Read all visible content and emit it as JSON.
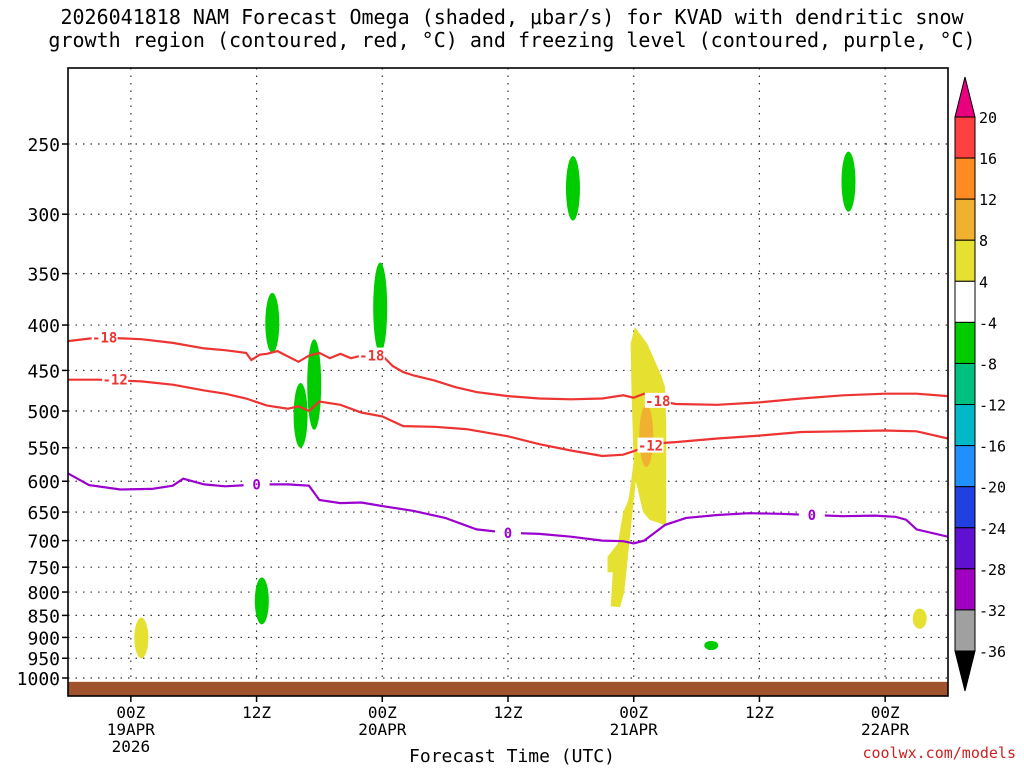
{
  "title_line1": "2026041818 NAM Forecast Omega (shaded, μbar/s) for KVAD with dendritic snow",
  "title_line2": "growth region (contoured, red, °C) and freezing level (contoured, purple, °C)",
  "credit": "coolwx.com/models",
  "chart_data": {
    "type": "contour",
    "title": "2026041818 NAM Forecast Omega (shaded, μbar/s) for KVAD with dendritic snow growth region (contoured, red, °C) and freezing level (contoured, purple, °C)",
    "xlabel": "Forecast Time (UTC)",
    "ylabel": "",
    "x_axis": {
      "unit": "hours from 2026-04-18 18Z",
      "range": [
        0,
        84
      ],
      "ticks": [
        {
          "hour": 6,
          "line1": "00Z",
          "line2": "19APR",
          "line3": "2026"
        },
        {
          "hour": 18,
          "line1": "12Z",
          "line2": "",
          "line3": ""
        },
        {
          "hour": 30,
          "line1": "00Z",
          "line2": "20APR",
          "line3": ""
        },
        {
          "hour": 42,
          "line1": "12Z",
          "line2": "",
          "line3": ""
        },
        {
          "hour": 54,
          "line1": "00Z",
          "line2": "21APR",
          "line3": ""
        },
        {
          "hour": 66,
          "line1": "12Z",
          "line2": "",
          "line3": ""
        },
        {
          "hour": 78,
          "line1": "00Z",
          "line2": "22APR",
          "line3": ""
        }
      ]
    },
    "y_axis": {
      "scale": "log-pressure (hPa), inverted",
      "range": [
        1025,
        200
      ],
      "ticks": [
        250,
        300,
        350,
        400,
        450,
        500,
        550,
        600,
        650,
        700,
        750,
        800,
        850,
        900,
        950,
        1000
      ],
      "grid": "dotted"
    },
    "colorbar": {
      "labels": [
        "20",
        "16",
        "12",
        "8",
        "4",
        "-4",
        "-8",
        "-12",
        "-16",
        "-20",
        "-24",
        "-28",
        "-32",
        "-36"
      ],
      "colors": [
        "#e8007f",
        "#ff4040",
        "#ff8c22",
        "#f0b030",
        "#e6e030",
        "#ffffff",
        "#00cc00",
        "#00c080",
        "#00b8c8",
        "#2090ff",
        "#2040e0",
        "#6010d0",
        "#a000c0",
        "#a0a0a0",
        "#000000"
      ]
    },
    "surface": {
      "color": "#a0522d",
      "pressure_top": 1010
    },
    "contours": [
      {
        "label": "-18",
        "color": "#ee3333",
        "points": [
          [
            0,
            417
          ],
          [
            3,
            413
          ],
          [
            7,
            415
          ],
          [
            10,
            419
          ],
          [
            13,
            425
          ],
          [
            15,
            427
          ],
          [
            17,
            430
          ],
          [
            17.5,
            438
          ],
          [
            18.3,
            432
          ],
          [
            19,
            431
          ],
          [
            20,
            428
          ],
          [
            21,
            434
          ],
          [
            22,
            440
          ],
          [
            23,
            433
          ],
          [
            24,
            430
          ],
          [
            25,
            436
          ],
          [
            26,
            431
          ],
          [
            27,
            436
          ],
          [
            28,
            433
          ],
          [
            29,
            437
          ],
          [
            30,
            433
          ],
          [
            31,
            445
          ],
          [
            32,
            452
          ],
          [
            33,
            456
          ],
          [
            35,
            462
          ],
          [
            37,
            470
          ],
          [
            39,
            476
          ],
          [
            42,
            481
          ],
          [
            45,
            484
          ],
          [
            48,
            485
          ],
          [
            51,
            484
          ],
          [
            53,
            480
          ],
          [
            54,
            483
          ],
          [
            55,
            478
          ],
          [
            56,
            486
          ],
          [
            58,
            491
          ],
          [
            62,
            492
          ],
          [
            66,
            489
          ],
          [
            70,
            484
          ],
          [
            74,
            480
          ],
          [
            78,
            478
          ],
          [
            81,
            478
          ],
          [
            84,
            481
          ]
        ],
        "label_points": [
          [
            3.5,
            413
          ],
          [
            29,
            433
          ],
          [
            56.3,
            487
          ]
        ]
      },
      {
        "label": "-12",
        "color": "#ee3333",
        "points": [
          [
            0,
            461
          ],
          [
            3,
            461
          ],
          [
            7,
            463
          ],
          [
            10,
            467
          ],
          [
            13,
            474
          ],
          [
            15,
            478
          ],
          [
            17,
            484
          ],
          [
            19,
            493
          ],
          [
            21,
            497
          ],
          [
            22,
            494
          ],
          [
            23,
            500
          ],
          [
            24,
            488
          ],
          [
            26,
            492
          ],
          [
            28,
            502
          ],
          [
            30,
            507
          ],
          [
            32,
            520
          ],
          [
            35,
            521
          ],
          [
            38,
            524
          ],
          [
            42,
            534
          ],
          [
            45,
            545
          ],
          [
            48,
            554
          ],
          [
            51,
            562
          ],
          [
            53,
            560
          ],
          [
            54,
            555
          ],
          [
            56,
            544
          ],
          [
            58,
            542
          ],
          [
            62,
            537
          ],
          [
            66,
            533
          ],
          [
            70,
            528
          ],
          [
            74,
            527
          ],
          [
            78,
            526
          ],
          [
            81,
            527
          ],
          [
            84,
            537
          ]
        ],
        "label_points": [
          [
            4.5,
            461
          ],
          [
            55.6,
            547
          ]
        ]
      },
      {
        "label": "0",
        "color": "#9b00cf",
        "points": [
          [
            0,
            588
          ],
          [
            2,
            606
          ],
          [
            5,
            613
          ],
          [
            8,
            612
          ],
          [
            10,
            607
          ],
          [
            11,
            596
          ],
          [
            13,
            605
          ],
          [
            15,
            608
          ],
          [
            17,
            606
          ],
          [
            19,
            605
          ],
          [
            21,
            605
          ],
          [
            23,
            607
          ],
          [
            24,
            630
          ],
          [
            26,
            635
          ],
          [
            28,
            634
          ],
          [
            30,
            640
          ],
          [
            33,
            648
          ],
          [
            36,
            660
          ],
          [
            39,
            680
          ],
          [
            42,
            686
          ],
          [
            45,
            688
          ],
          [
            48,
            693
          ],
          [
            51,
            700
          ],
          [
            53,
            701
          ],
          [
            54,
            705
          ],
          [
            55,
            700
          ],
          [
            57,
            672
          ],
          [
            59,
            660
          ],
          [
            62,
            655
          ],
          [
            65,
            652
          ],
          [
            68,
            653
          ],
          [
            71,
            655
          ],
          [
            74,
            657
          ],
          [
            77,
            656
          ],
          [
            79,
            658
          ],
          [
            80,
            663
          ],
          [
            81,
            680
          ],
          [
            84,
            693
          ]
        ],
        "label_points": [
          [
            18,
            605
          ],
          [
            42,
            686
          ],
          [
            71,
            655
          ]
        ]
      }
    ],
    "omega_shading": [
      {
        "name": "green ascent 1",
        "color": "#00cc00",
        "ellipse": {
          "center_hour": 19.5,
          "top_hPa": 368,
          "bottom_hPa": 430
        }
      },
      {
        "name": "green ascent 2",
        "color": "#00cc00",
        "ellipse": {
          "center_hour": 22.2,
          "top_hPa": 465,
          "bottom_hPa": 550
        }
      },
      {
        "name": "green ascent 3",
        "color": "#00cc00",
        "ellipse": {
          "center_hour": 23.5,
          "top_hPa": 415,
          "bottom_hPa": 525
        }
      },
      {
        "name": "green ascent 4",
        "color": "#00cc00",
        "ellipse": {
          "center_hour": 29.8,
          "top_hPa": 340,
          "bottom_hPa": 430
        }
      },
      {
        "name": "green ascent 5",
        "color": "#00cc00",
        "ellipse": {
          "center_hour": 18.5,
          "top_hPa": 770,
          "bottom_hPa": 870
        }
      },
      {
        "name": "green ascent 6",
        "color": "#00cc00",
        "ellipse": {
          "center_hour": 48.2,
          "top_hPa": 258,
          "bottom_hPa": 305
        }
      },
      {
        "name": "green ascent 7",
        "color": "#00cc00",
        "ellipse": {
          "center_hour": 74.5,
          "top_hPa": 255,
          "bottom_hPa": 298
        }
      },
      {
        "name": "green ascent 8",
        "color": "#00cc00",
        "ellipse": {
          "center_hour": 61.4,
          "top_hPa": 908,
          "bottom_hPa": 930
        }
      },
      {
        "name": "yellow descent 1",
        "color": "#e6e030",
        "ellipse": {
          "center_hour": 7.0,
          "top_hPa": 855,
          "bottom_hPa": 950
        }
      },
      {
        "name": "yellow descent 2",
        "color": "#e6e030",
        "ellipse": {
          "center_hour": 81.3,
          "top_hPa": 835,
          "bottom_hPa": 880
        }
      },
      {
        "name": "yellow descent main",
        "color": "#e6e030",
        "polygon": [
          [
            54.1,
            402
          ],
          [
            55.3,
            420
          ],
          [
            56.6,
            455
          ],
          [
            57.0,
            470
          ],
          [
            57.1,
            520
          ],
          [
            57.1,
            673
          ],
          [
            55.5,
            663
          ],
          [
            54.9,
            650
          ],
          [
            54.2,
            600
          ],
          [
            53.6,
            700
          ],
          [
            53.1,
            800
          ],
          [
            52.7,
            832
          ],
          [
            51.8,
            830
          ],
          [
            52.0,
            760
          ],
          [
            51.5,
            760
          ],
          [
            51.5,
            730
          ],
          [
            52.5,
            705
          ],
          [
            52.8,
            670
          ],
          [
            53.0,
            650
          ],
          [
            53.5,
            630
          ],
          [
            54.0,
            570
          ],
          [
            53.8,
            480
          ],
          [
            53.7,
            420
          ]
        ]
      },
      {
        "name": "orange descent core",
        "color": "#f0b030",
        "ellipse": {
          "center_hour": 55.2,
          "top_hPa": 492,
          "bottom_hPa": 578
        }
      }
    ]
  }
}
